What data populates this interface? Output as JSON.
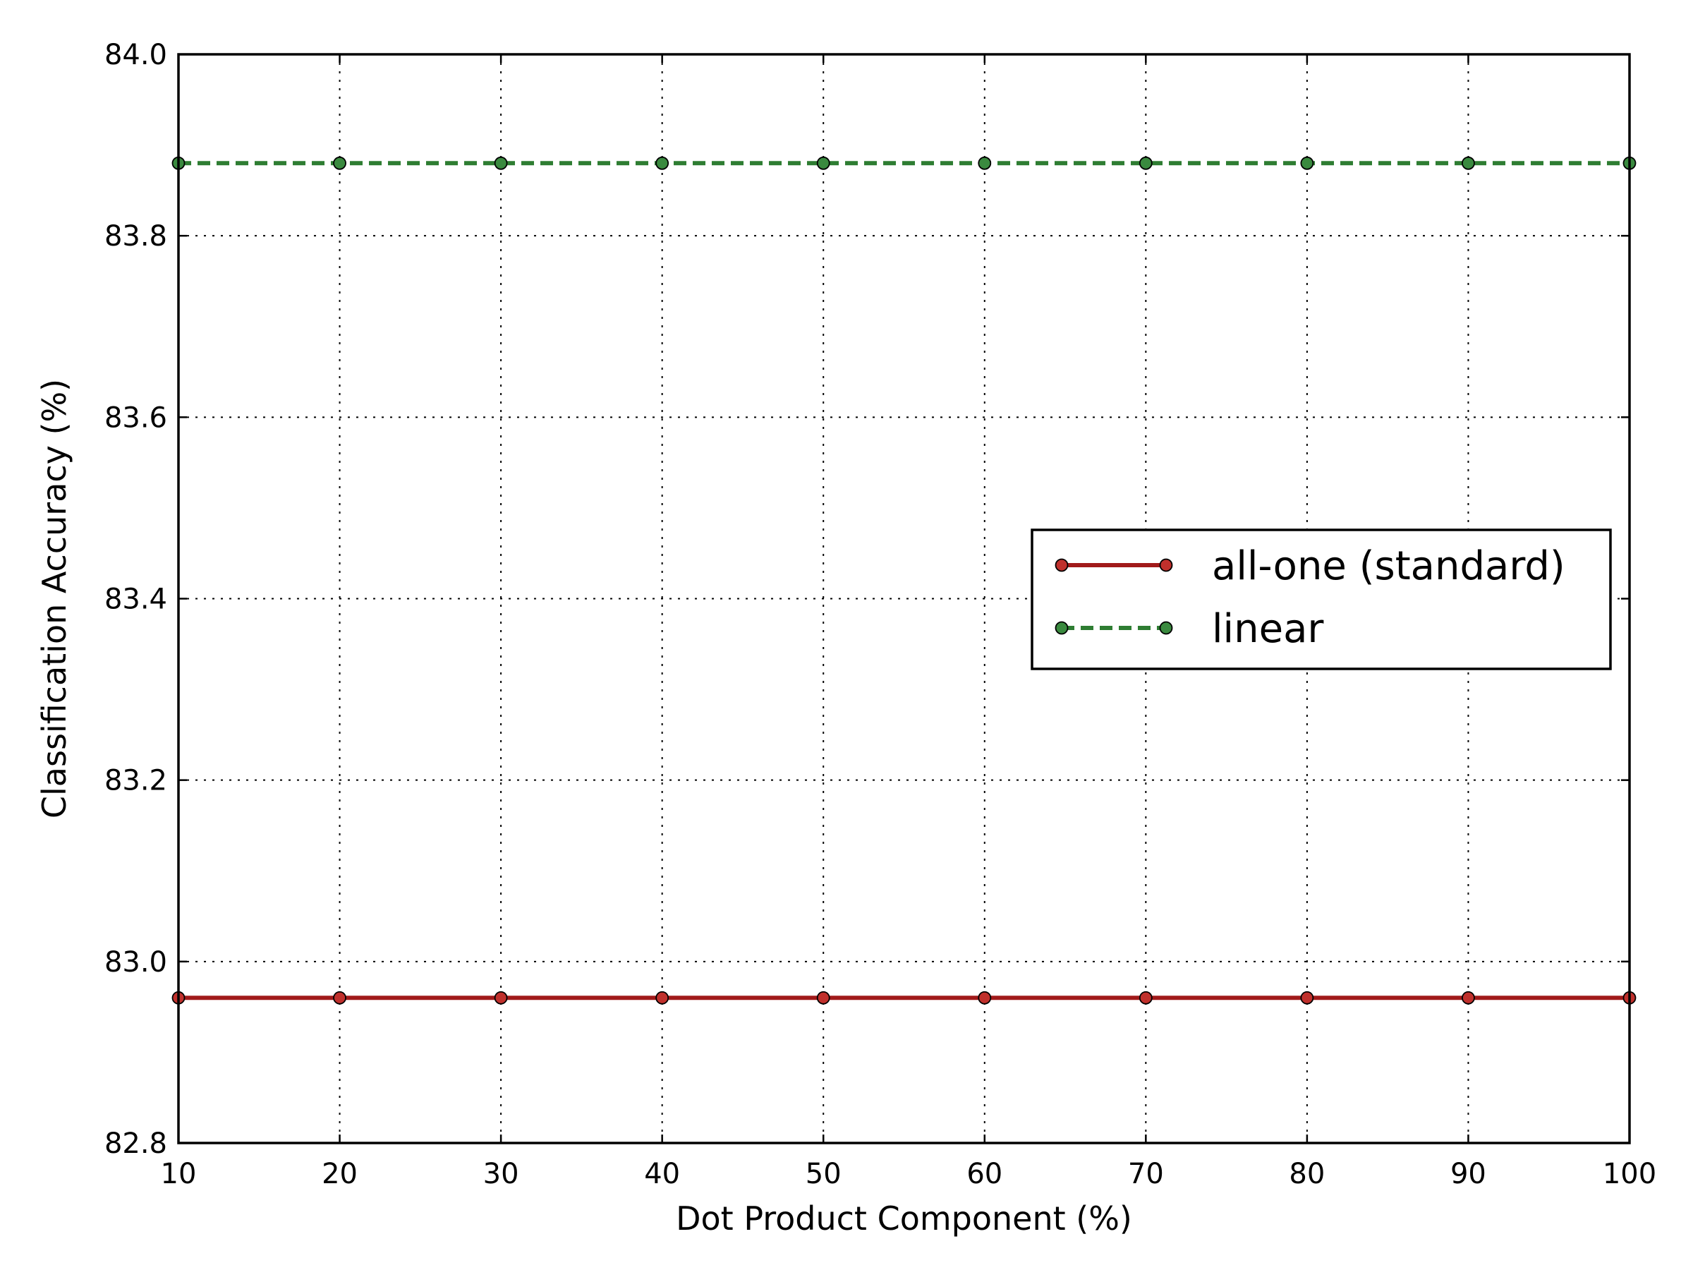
{
  "chart_data": {
    "type": "line",
    "xlabel": "Dot Product Component (%)",
    "ylabel": "Classification Accuracy (%)",
    "xlim": [
      10,
      100
    ],
    "ylim": [
      82.8,
      84.0
    ],
    "x_ticks": [
      10,
      20,
      30,
      40,
      50,
      60,
      70,
      80,
      90,
      100
    ],
    "y_ticks": [
      "82.8",
      "83.0",
      "83.2",
      "83.4",
      "83.6",
      "83.8",
      "84.0"
    ],
    "grid": true,
    "legend_position": "center-right",
    "x": [
      10,
      20,
      30,
      40,
      50,
      60,
      70,
      80,
      90,
      100
    ],
    "series": [
      {
        "name": "all-one (standard)",
        "values": [
          82.96,
          82.96,
          82.96,
          82.96,
          82.96,
          82.96,
          82.96,
          82.96,
          82.96,
          82.96
        ],
        "color": "#a11a1a",
        "marker_color": "#c0302c",
        "line_style": "solid"
      },
      {
        "name": "linear",
        "values": [
          83.88,
          83.88,
          83.88,
          83.88,
          83.88,
          83.88,
          83.88,
          83.88,
          83.88,
          83.88
        ],
        "color": "#2e7d32",
        "marker_color": "#3a8a3f",
        "line_style": "dashed"
      }
    ]
  }
}
